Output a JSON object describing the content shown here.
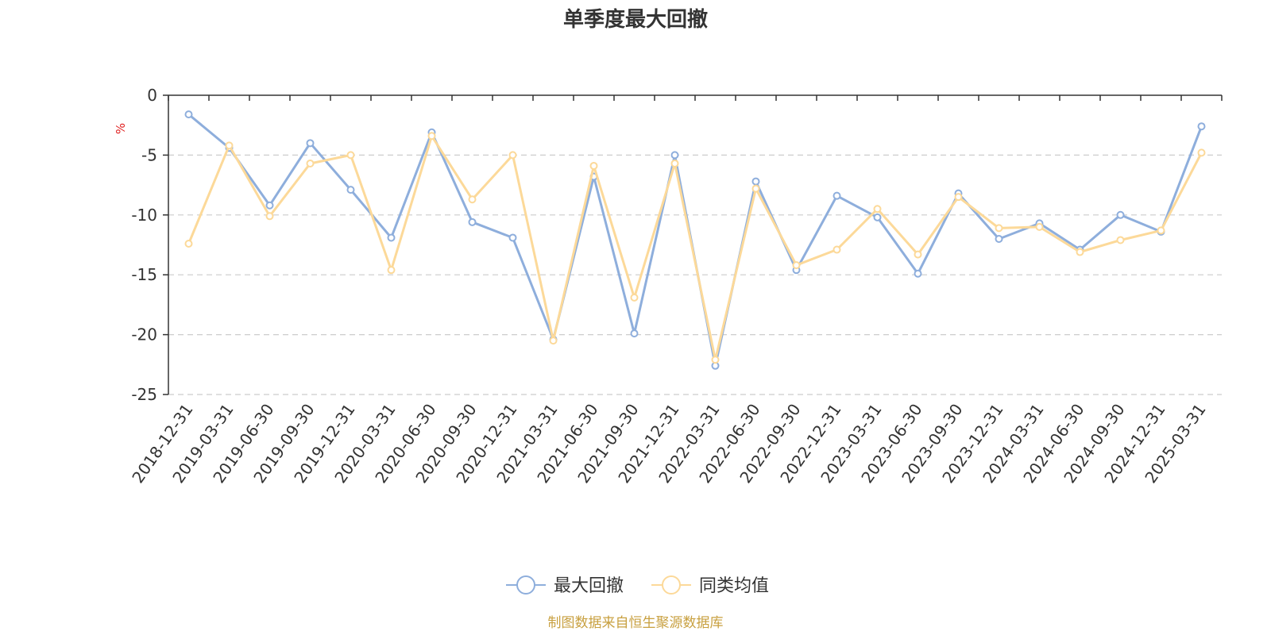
{
  "chart_data": {
    "type": "line",
    "title": "单季度最大回撤",
    "ylabel": "%",
    "ylim": [
      -25,
      0
    ],
    "yticks": [
      0,
      -5,
      -10,
      -15,
      -20,
      -25
    ],
    "grid": true,
    "legend_position": "bottom",
    "x": [
      "2018-12-31",
      "2019-03-31",
      "2019-06-30",
      "2019-09-30",
      "2019-12-31",
      "2020-03-31",
      "2020-06-30",
      "2020-09-30",
      "2020-12-31",
      "2021-03-31",
      "2021-06-30",
      "2021-09-30",
      "2021-12-31",
      "2022-03-31",
      "2022-06-30",
      "2022-09-30",
      "2022-12-31",
      "2023-03-31",
      "2023-06-30",
      "2023-09-30",
      "2023-12-31",
      "2024-03-31",
      "2024-06-30",
      "2024-09-30",
      "2024-12-31",
      "2025-03-31"
    ],
    "series": [
      {
        "name": "最大回撤",
        "color": "#8eaedc",
        "values": [
          -1.6,
          -4.4,
          -9.2,
          -4.0,
          -7.9,
          -11.9,
          -3.1,
          -10.6,
          -11.9,
          -20.4,
          -6.8,
          -19.9,
          -5.0,
          -22.6,
          -7.2,
          -14.6,
          -8.4,
          -10.2,
          -14.9,
          -8.2,
          -12.0,
          -10.7,
          -12.9,
          -10.0,
          -11.4,
          -2.6
        ]
      },
      {
        "name": "同类均值",
        "color": "#fcd999",
        "values": [
          -12.4,
          -4.2,
          -10.1,
          -5.7,
          -5.0,
          -14.6,
          -3.4,
          -8.7,
          -5.0,
          -20.5,
          -5.9,
          -16.9,
          -5.7,
          -22.1,
          -7.8,
          -14.2,
          -12.9,
          -9.5,
          -13.3,
          -8.5,
          -11.1,
          -11.0,
          -13.1,
          -12.1,
          -11.3,
          -4.8
        ]
      }
    ]
  },
  "source_note": "制图数据来自恒生聚源数据库",
  "colors": {
    "axis": "#333333",
    "grid": "#cccccc",
    "unit": "#e02020",
    "source": "#c8a040",
    "title": "#333333"
  }
}
